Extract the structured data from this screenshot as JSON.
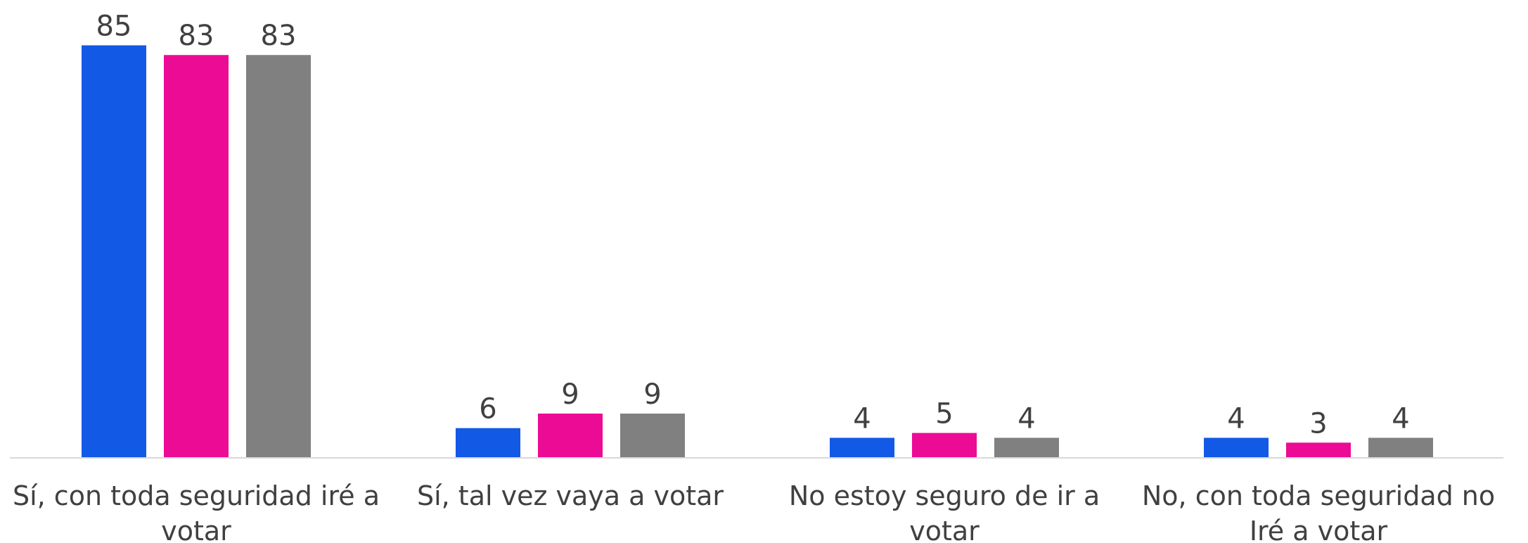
{
  "chart_data": {
    "type": "bar",
    "categories": [
      "Sí, con toda seguridad iré a votar",
      "Sí, tal vez vaya a votar",
      "No estoy seguro de ir a votar",
      "No, con toda seguridad no Iré a votar"
    ],
    "series": [
      {
        "color": "#1259e6",
        "values": [
          85,
          6,
          4,
          4
        ]
      },
      {
        "color": "#ec0b95",
        "values": [
          83,
          9,
          5,
          3
        ]
      },
      {
        "color": "#808080",
        "values": [
          83,
          9,
          4,
          4
        ]
      }
    ],
    "ylim": [
      0,
      90
    ]
  }
}
